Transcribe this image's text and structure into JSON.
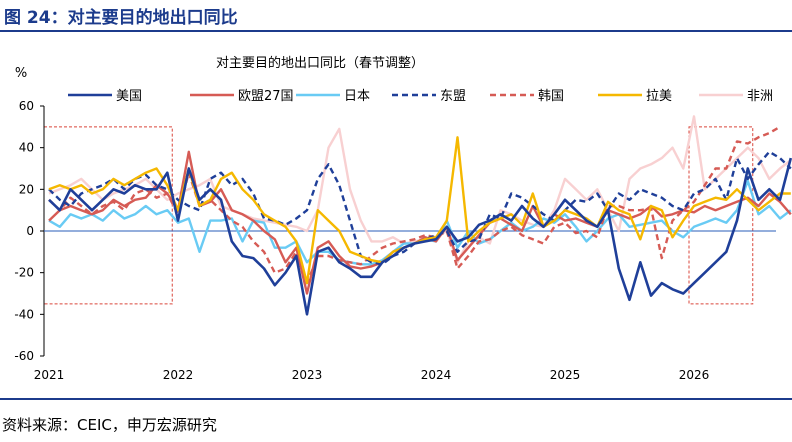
{
  "figure": {
    "title": "图 24：对主要目的地出口同比",
    "source": "资料来源：CEIC，申万宏源研究"
  },
  "chart_data": {
    "type": "line",
    "title": "对主要目的地出口同比（春节调整）",
    "ylabel": "%",
    "xlabel": "",
    "ylim": [
      -60,
      60
    ],
    "yticks": [
      -60,
      -40,
      -20,
      0,
      20,
      40,
      60
    ],
    "x_tick_labels": [
      "2021",
      "2022",
      "2023",
      "2024",
      "2025",
      "2026"
    ],
    "x_start": "2021-01",
    "x_step": "monthly",
    "legend_position": "top",
    "grid": false,
    "highlight_boxes": [
      "2021-01 to 2021-12",
      "2026-01 to 2026-06"
    ],
    "series": [
      {
        "name": "美国",
        "color": "#1f3f99",
        "style": "solid",
        "values": [
          15,
          10,
          20,
          15,
          10,
          15,
          20,
          18,
          22,
          20,
          20,
          28,
          5,
          30,
          15,
          20,
          15,
          -5,
          -12,
          -13,
          -18,
          -26,
          -20,
          -12,
          -40,
          -10,
          -8,
          -15,
          -18,
          -22,
          -22,
          -15,
          -12,
          -8,
          -6,
          -5,
          -4,
          2,
          -5,
          -3,
          3,
          5,
          8,
          5,
          12,
          6,
          2,
          8,
          15,
          10,
          5,
          2,
          10,
          -18,
          -33,
          -15,
          -31,
          -25,
          -28,
          -30,
          -25,
          -20,
          -15,
          -10,
          5,
          30,
          15,
          20,
          15,
          35
        ]
      },
      {
        "name": "欧盟27国",
        "color": "#d65b55",
        "style": "solid",
        "values": [
          5,
          10,
          12,
          10,
          8,
          10,
          15,
          12,
          15,
          16,
          22,
          18,
          10,
          38,
          12,
          14,
          20,
          10,
          8,
          5,
          0,
          -4,
          -15,
          -8,
          -30,
          -8,
          -5,
          -12,
          -17,
          -18,
          -17,
          -15,
          -10,
          -8,
          -6,
          -3,
          -5,
          2,
          -14,
          -8,
          -2,
          4,
          6,
          3,
          0,
          12,
          2,
          8,
          5,
          6,
          4,
          2,
          10,
          8,
          6,
          8,
          12,
          7,
          8,
          10,
          9,
          12,
          10,
          12,
          14,
          16,
          12,
          18,
          14,
          8
        ]
      },
      {
        "name": "日本",
        "color": "#69cbf4",
        "style": "solid",
        "values": [
          5,
          2,
          8,
          6,
          8,
          5,
          10,
          6,
          8,
          12,
          8,
          10,
          4,
          6,
          -10,
          5,
          5,
          6,
          -5,
          5,
          4,
          -8,
          -8,
          -5,
          -15,
          -10,
          -10,
          -14,
          -15,
          -16,
          -16,
          -14,
          -10,
          -6,
          -6,
          -4,
          -5,
          5,
          -8,
          0,
          -6,
          -4,
          0,
          4,
          0,
          2,
          6,
          4,
          8,
          2,
          -5,
          0,
          6,
          8,
          2,
          3,
          4,
          5,
          0,
          -3,
          2,
          4,
          6,
          4,
          10,
          24,
          8,
          12,
          6,
          10
        ]
      },
      {
        "name": "东盟",
        "color": "#1f3f99",
        "style": "dashed",
        "values": [
          20,
          15,
          12,
          18,
          20,
          22,
          25,
          20,
          25,
          27,
          22,
          20,
          15,
          12,
          10,
          25,
          28,
          22,
          25,
          18,
          6,
          5,
          3,
          6,
          10,
          25,
          32,
          22,
          5,
          -12,
          -15,
          -16,
          -12,
          -10,
          -6,
          -4,
          -2,
          0,
          -10,
          -5,
          -4,
          8,
          6,
          18,
          16,
          12,
          8,
          5,
          10,
          15,
          14,
          18,
          10,
          18,
          15,
          20,
          18,
          16,
          12,
          10,
          18,
          20,
          25,
          15,
          35,
          25,
          32,
          38,
          35,
          30
        ]
      },
      {
        "name": "韩国",
        "color": "#d65b55",
        "style": "dashed",
        "values": [
          15,
          10,
          16,
          12,
          8,
          12,
          14,
          10,
          18,
          20,
          16,
          18,
          8,
          28,
          12,
          15,
          10,
          5,
          2,
          -5,
          -10,
          -20,
          -18,
          -10,
          -25,
          -12,
          -12,
          -14,
          -15,
          -16,
          -12,
          -8,
          -6,
          -5,
          -4,
          -2,
          -3,
          0,
          -18,
          -12,
          -5,
          -4,
          0,
          2,
          -2,
          -4,
          -6,
          2,
          4,
          -1,
          0,
          -3,
          12,
          12,
          10,
          10,
          11,
          -13,
          5,
          10,
          14,
          22,
          30,
          30,
          43,
          42,
          45,
          47,
          50
        ]
      },
      {
        "name": "拉美",
        "color": "#f5b800",
        "style": "solid",
        "values": [
          20,
          22,
          20,
          22,
          18,
          20,
          25,
          22,
          25,
          28,
          30,
          22,
          10,
          30,
          12,
          15,
          25,
          28,
          20,
          15,
          8,
          5,
          2,
          -5,
          -25,
          10,
          5,
          0,
          -10,
          -12,
          -14,
          -15,
          -10,
          -8,
          -6,
          -4,
          -3,
          5,
          45,
          -5,
          0,
          4,
          6,
          8,
          3,
          18,
          2,
          5,
          10,
          8,
          6,
          2,
          14,
          10,
          8,
          -4,
          12,
          10,
          -3,
          5,
          12,
          14,
          16,
          15,
          20,
          15,
          10,
          14,
          18,
          18
        ]
      },
      {
        "name": "非洲",
        "color": "#f8d0d1",
        "style": "solid",
        "values": [
          18,
          20,
          22,
          25,
          20,
          15,
          18,
          20,
          22,
          25,
          20,
          15,
          18,
          20,
          22,
          25,
          12,
          10,
          8,
          6,
          5,
          4,
          3,
          2,
          0,
          10,
          40,
          49,
          20,
          5,
          -5,
          -5,
          -3,
          -6,
          -5,
          -4,
          -3,
          0,
          -15,
          -5,
          -3,
          -6,
          10,
          8,
          5,
          3,
          2,
          10,
          25,
          20,
          15,
          20,
          10,
          0,
          25,
          30,
          32,
          35,
          40,
          30,
          55,
          20,
          25,
          30,
          35,
          40,
          35,
          25,
          30,
          34
        ]
      }
    ]
  }
}
